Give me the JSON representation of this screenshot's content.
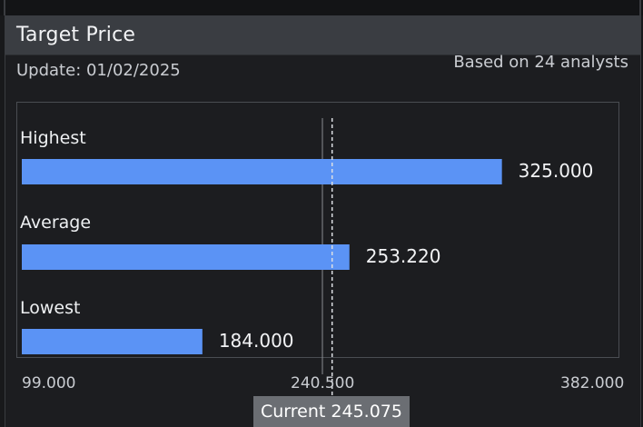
{
  "widget": {
    "title": "Target Price",
    "update_text": "Update: 01/02/2025",
    "analysts_text": "Based on 24 analysts",
    "current_label": "Current 245.075"
  },
  "chart_data": {
    "type": "bar",
    "orientation": "horizontal",
    "categories": [
      "Highest",
      "Average",
      "Lowest"
    ],
    "values": [
      325.0,
      253.22,
      184.0
    ],
    "value_labels": [
      "325.000",
      "253.220",
      "184.000"
    ],
    "xlim": [
      99.0,
      382.0
    ],
    "x_ticks": [
      99.0,
      240.5,
      382.0
    ],
    "x_tick_labels": [
      "99.000",
      "240.500",
      "382.000"
    ],
    "current": 245.075,
    "bar_color": "#5b93f5",
    "midline_color": "#8a8d92",
    "current_line_color": "#dcdfe3"
  }
}
